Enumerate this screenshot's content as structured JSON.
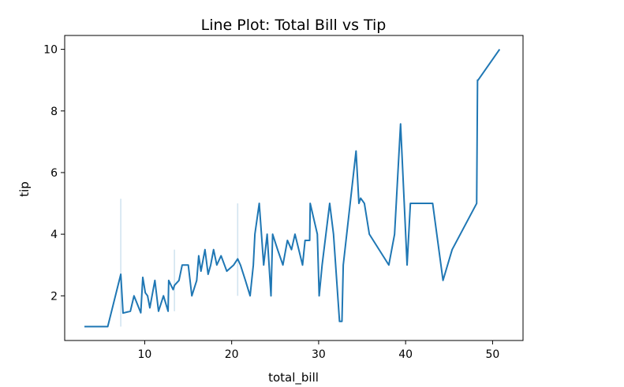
{
  "chart_data": {
    "type": "line",
    "title": "Line Plot: Total Bill vs Tip",
    "xlabel": "total_bill",
    "ylabel": "tip",
    "xlim": [
      0.8,
      53.5
    ],
    "ylim": [
      0.55,
      10.45
    ],
    "xticks": [
      10,
      20,
      30,
      40,
      50
    ],
    "yticks": [
      2,
      4,
      6,
      8,
      10
    ],
    "grid": false,
    "line_color": "#1f77b4",
    "band_color": "#1f77b4",
    "series": [
      {
        "x": [
          3.07,
          5.75,
          7.25,
          7.51,
          8.35,
          8.77,
          9.55,
          9.78,
          10.07,
          10.33,
          10.59,
          11.17,
          11.59,
          12.16,
          12.69,
          12.76,
          13.27,
          13.42,
          13.94,
          14.31,
          15.01,
          15.42,
          15.98,
          16.21,
          16.47,
          16.93,
          17.29,
          17.59,
          17.92,
          18.29,
          18.78,
          19.44,
          20.23,
          20.69,
          21.01,
          21.58,
          22.12,
          22.49,
          22.67,
          23.17,
          23.68,
          24.08,
          24.52,
          24.71,
          25.28,
          25.89,
          26.41,
          26.88,
          27.28,
          28.15,
          28.44,
          28.97,
          29.03,
          29.85,
          30.06,
          30.4,
          31.27,
          31.71,
          32.4,
          32.68,
          32.83,
          34.3,
          34.63,
          34.83,
          35.26,
          35.83,
          38.07,
          38.73,
          39.42,
          40.17,
          40.55,
          41.19,
          43.11,
          44.3,
          45.35,
          48.17,
          48.27,
          48.33,
          50.81
        ],
        "y": [
          1.0,
          1.0,
          2.7,
          1.44,
          1.5,
          2.0,
          1.45,
          2.6,
          2.1,
          2.0,
          1.61,
          2.5,
          1.5,
          2.0,
          1.5,
          2.5,
          2.2,
          2.34,
          2.5,
          3.0,
          3.0,
          2.0,
          2.5,
          3.3,
          2.8,
          3.5,
          2.7,
          3.0,
          3.5,
          3.0,
          3.3,
          2.8,
          3.0,
          3.2,
          3.0,
          2.5,
          2.0,
          3.0,
          4.0,
          5.0,
          3.0,
          4.0,
          2.0,
          4.0,
          3.5,
          3.0,
          3.8,
          3.5,
          4.0,
          3.0,
          3.8,
          3.8,
          5.0,
          4.0,
          2.0,
          3.0,
          5.0,
          4.0,
          1.17,
          1.17,
          3.0,
          6.7,
          5.0,
          5.17,
          5.0,
          4.0,
          3.0,
          4.0,
          7.58,
          3.0,
          5.0,
          5.0,
          5.0,
          2.5,
          3.5,
          5.0,
          9.0,
          9.0,
          10.0
        ]
      }
    ],
    "ci_bands": [
      {
        "x": 7.25,
        "low": 1.0,
        "high": 5.15
      },
      {
        "x": 13.42,
        "low": 1.5,
        "high": 3.5
      },
      {
        "x": 20.69,
        "low": 2.0,
        "high": 5.0
      }
    ]
  }
}
